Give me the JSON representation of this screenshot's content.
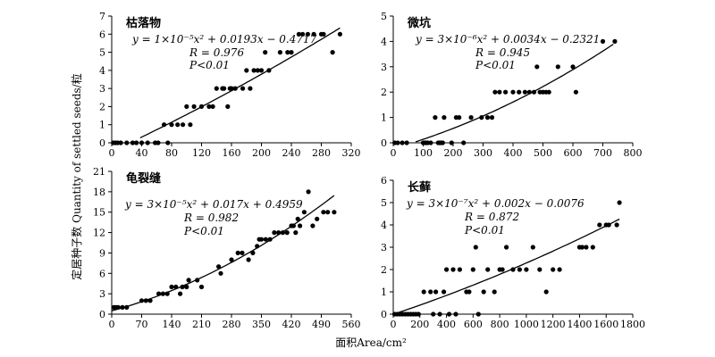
{
  "figure": {
    "xlabel": "面积Area/cm²",
    "ylabel": "定居种子数 Quantity of settled seeds/粒"
  },
  "chart_data": [
    {
      "type": "scatter",
      "title": "枯落物",
      "xticks": [
        "0",
        "40",
        "80",
        "120",
        "160",
        "200",
        "240",
        "280",
        "320"
      ],
      "yticks": [
        "0",
        "1",
        "2",
        "3",
        "4",
        "5",
        "6",
        "7"
      ],
      "xlim": [
        0,
        320
      ],
      "ylim": [
        0,
        7
      ],
      "fit": {
        "a": 1e-05,
        "b": 0.0193,
        "c": -0.4717,
        "x_from": 38,
        "x_to": 305
      },
      "equation": "y = 1×10⁻⁵x² + 0.0193x − 0.4717",
      "r": "R = 0.976",
      "p": "P<0.01",
      "x": [
        2,
        5,
        8,
        12,
        20,
        28,
        33,
        40,
        48,
        58,
        62,
        70,
        75,
        80,
        88,
        95,
        100,
        105,
        110,
        120,
        130,
        135,
        140,
        148,
        150,
        155,
        158,
        160,
        165,
        175,
        180,
        185,
        190,
        195,
        200,
        205,
        210,
        225,
        235,
        240,
        250,
        255,
        262,
        270,
        280,
        283,
        295,
        305
      ],
      "y": [
        0,
        0,
        0,
        0,
        0,
        0,
        0,
        0,
        0,
        0,
        0,
        1,
        0,
        1,
        1,
        1,
        2,
        1,
        2,
        2,
        2,
        2,
        3,
        3,
        3,
        2,
        3,
        3,
        3,
        3,
        4,
        3,
        4,
        4,
        4,
        5,
        4,
        5,
        5,
        5,
        6,
        6,
        6,
        6,
        6,
        6,
        5,
        6
      ]
    },
    {
      "type": "scatter",
      "title": "微坑",
      "xticks": [
        "0",
        "100",
        "200",
        "300",
        "400",
        "500",
        "600",
        "700",
        "800"
      ],
      "yticks": [
        "0",
        "1",
        "2",
        "3",
        "4",
        "5"
      ],
      "xlim": [
        0,
        800
      ],
      "ylim": [
        0,
        5
      ],
      "fit": {
        "a": 3e-06,
        "b": 0.0034,
        "c": -0.2321,
        "x_from": 75,
        "x_to": 735
      },
      "equation": "y = 3×10⁻⁶x² + 0.0034x − 0.2321",
      "r": "R = 0.945",
      "p": "P<0.01",
      "x": [
        5,
        15,
        30,
        45,
        100,
        105,
        110,
        115,
        125,
        140,
        150,
        155,
        160,
        165,
        170,
        195,
        210,
        220,
        235,
        260,
        295,
        315,
        330,
        340,
        355,
        375,
        400,
        420,
        440,
        455,
        470,
        480,
        490,
        500,
        510,
        520,
        550,
        600,
        610,
        700,
        740
      ],
      "y": [
        0,
        0,
        0,
        0,
        0,
        0,
        0,
        0,
        0,
        1,
        0,
        0,
        0,
        0,
        1,
        0,
        1,
        1,
        0,
        1,
        1,
        1,
        1,
        2,
        2,
        2,
        2,
        2,
        2,
        2,
        2,
        3,
        2,
        2,
        2,
        2,
        3,
        3,
        2,
        4,
        4
      ]
    },
    {
      "type": "scatter",
      "title": "龟裂缝",
      "xticks": [
        "0",
        "70",
        "140",
        "210",
        "280",
        "350",
        "420",
        "490",
        "560"
      ],
      "yticks": [
        "0",
        "3",
        "6",
        "9",
        "12",
        "15",
        "18",
        "21"
      ],
      "xlim": [
        0,
        560
      ],
      "ylim": [
        0,
        21
      ],
      "fit": {
        "a": 3e-05,
        "b": 0.017,
        "c": 0.4959,
        "x_from": 0,
        "x_to": 520
      },
      "equation": "y = 3×10⁻⁵x² + 0.017x + 0.4959",
      "r": "R = 0.982",
      "p": "P<0.01",
      "x": [
        5,
        10,
        15,
        25,
        35,
        70,
        80,
        90,
        110,
        120,
        130,
        140,
        150,
        160,
        165,
        175,
        180,
        200,
        210,
        250,
        255,
        280,
        295,
        305,
        320,
        330,
        340,
        345,
        350,
        360,
        370,
        380,
        390,
        400,
        410,
        420,
        425,
        430,
        435,
        440,
        450,
        460,
        470,
        480,
        495,
        505,
        520
      ],
      "y": [
        1,
        1,
        1,
        1,
        1,
        2,
        2,
        2,
        3,
        3,
        3,
        4,
        4,
        3,
        4,
        4,
        5,
        5,
        4,
        7,
        6,
        8,
        9,
        9,
        8,
        9,
        10,
        11,
        11,
        11,
        11,
        12,
        12,
        12,
        12,
        13,
        13,
        12,
        14,
        13,
        15,
        18,
        13,
        14,
        15,
        15,
        15
      ]
    },
    {
      "type": "scatter",
      "title": "长藓",
      "xticks": [
        "0",
        "200",
        "400",
        "600",
        "800",
        "1000",
        "1200",
        "1400",
        "1600",
        "1800"
      ],
      "yticks": [
        "0",
        "1",
        "2",
        "3",
        "4",
        "5",
        "6"
      ],
      "xlim": [
        0,
        1800
      ],
      "ylim": [
        0,
        6
      ],
      "fit": {
        "a": 3e-07,
        "b": 0.002,
        "c": -0.0076,
        "x_from": 0,
        "x_to": 1700
      },
      "equation": "y = 3×10⁻⁷x² + 0.002x − 0.0076",
      "r": "R = 0.872",
      "p": "P<0.01",
      "x": [
        10,
        30,
        50,
        70,
        90,
        110,
        130,
        150,
        170,
        190,
        230,
        280,
        300,
        320,
        350,
        380,
        400,
        420,
        450,
        470,
        500,
        550,
        570,
        600,
        620,
        640,
        680,
        710,
        760,
        800,
        820,
        850,
        900,
        950,
        1000,
        1050,
        1100,
        1150,
        1200,
        1250,
        1400,
        1420,
        1450,
        1500,
        1550,
        1600,
        1620,
        1680,
        1700
      ],
      "y": [
        0,
        0,
        0,
        0,
        0,
        0,
        0,
        0,
        0,
        0,
        1,
        1,
        0,
        1,
        0,
        1,
        2,
        0,
        2,
        0,
        2,
        1,
        1,
        2,
        3,
        0,
        1,
        2,
        1,
        2,
        2,
        3,
        2,
        2,
        2,
        3,
        2,
        1,
        2,
        2,
        3,
        3,
        3,
        3,
        4,
        4,
        4,
        4,
        5
      ]
    }
  ]
}
